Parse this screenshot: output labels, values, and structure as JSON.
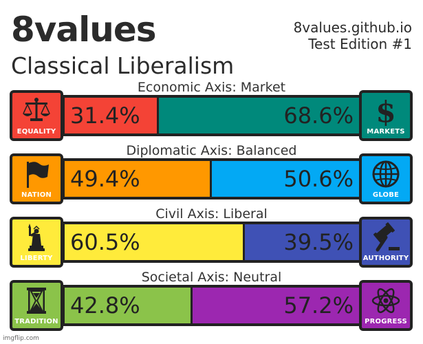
{
  "header": {
    "brand": "8values",
    "ideology": "Classical Liberalism",
    "site": "8values.github.io",
    "edition": "Test Edition #1"
  },
  "axes": [
    {
      "title": "Economic Axis: Market",
      "left": {
        "label": "EQUALITY",
        "icon": "scales-icon",
        "percent": 31.4,
        "text": "31.4%",
        "color": "#f44336"
      },
      "right": {
        "label": "MARKETS",
        "icon": "dollar-icon",
        "percent": 68.6,
        "text": "68.6%",
        "color": "#00897b"
      }
    },
    {
      "title": "Diplomatic Axis: Balanced",
      "left": {
        "label": "NATION",
        "icon": "flag-icon",
        "percent": 49.4,
        "text": "49.4%",
        "color": "#ff9800"
      },
      "right": {
        "label": "GLOBE",
        "icon": "globe-icon",
        "percent": 50.6,
        "text": "50.6%",
        "color": "#03a9f4"
      }
    },
    {
      "title": "Civil Axis: Liberal",
      "left": {
        "label": "LIBERTY",
        "icon": "liberty-statue-icon",
        "percent": 60.5,
        "text": "60.5%",
        "color": "#ffeb3b"
      },
      "right": {
        "label": "AUTHORITY",
        "icon": "gavel-icon",
        "percent": 39.5,
        "text": "39.5%",
        "color": "#3f51b5"
      }
    },
    {
      "title": "Societal Axis: Neutral",
      "left": {
        "label": "TRADITION",
        "icon": "hourglass-icon",
        "percent": 42.8,
        "text": "42.8%",
        "color": "#8bc34a"
      },
      "right": {
        "label": "PROGRESS",
        "icon": "atom-icon",
        "percent": 57.2,
        "text": "57.2%",
        "color": "#9c27b0"
      }
    }
  ],
  "watermark": "imgflip.com"
}
